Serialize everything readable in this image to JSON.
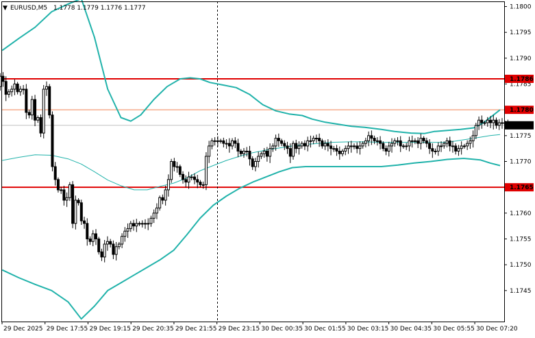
{
  "header": {
    "symbol": "EURUSD,M5",
    "ohlc": "1.1778 1.1779 1.1776 1.1777",
    "triangle": "▼"
  },
  "colors": {
    "background": "#ffffff",
    "candle": "#000000",
    "band": "#20b2aa",
    "level_line": "#e00000",
    "level_line_thin": "#f08050",
    "current_line": "#c0c0c0",
    "current_label_bg": "#000000",
    "level_label_bg": "#e00000"
  },
  "chart_data": {
    "type": "candlestick",
    "instrument": "EURUSD",
    "timeframe": "M5",
    "ylim": [
      1.1739,
      1.1801
    ],
    "y_ticks": [
      "1.1800",
      "1.1795",
      "1.1790",
      "1.1785",
      "1.1775",
      "1.1770",
      "1.1760",
      "1.1755",
      "1.1750",
      "1.1745"
    ],
    "x_ticks": [
      "29 Dec 2025",
      "29 Dec 17:55",
      "29 Dec 19:15",
      "29 Dec 20:35",
      "29 Dec 21:55",
      "29 Dec 23:15",
      "30 Dec 00:35",
      "30 Dec 01:55",
      "30 Dec 03:15",
      "30 Dec 04:35",
      "30 Dec 05:55",
      "30 Dec 07:20"
    ],
    "levels": [
      {
        "value": "1.1786",
        "style": "thick"
      },
      {
        "value": "1.1780",
        "style": "thin"
      },
      {
        "value": "1.1765",
        "style": "thick"
      }
    ],
    "current_price": "1.1777",
    "session_separator_after_tick": 5,
    "close": [
      1.17845,
      1.17865,
      1.17855,
      1.1783,
      1.17835,
      1.1784,
      1.1785,
      1.17835,
      1.1784,
      1.1784,
      1.17795,
      1.1779,
      1.1782,
      1.1778,
      1.17785,
      1.17755,
      1.1784,
      1.17845,
      1.1779,
      1.1769,
      1.17665,
      1.17645,
      1.17645,
      1.17625,
      1.1763,
      1.17655,
      1.1758,
      1.17625,
      1.1762,
      1.17585,
      1.1758,
      1.1755,
      1.17545,
      1.1756,
      1.1755,
      1.17525,
      1.17515,
      1.1754,
      1.17545,
      1.1754,
      1.1752,
      1.17535,
      1.1754,
      1.17555,
      1.17565,
      1.1757,
      1.1758,
      1.17575,
      1.1758,
      1.1758,
      1.1758,
      1.1758,
      1.1758,
      1.1759,
      1.176,
      1.1761,
      1.1763,
      1.17625,
      1.17645,
      1.17665,
      1.177,
      1.1769,
      1.1769,
      1.17675,
      1.17665,
      1.1766,
      1.1767,
      1.1767,
      1.17665,
      1.1766,
      1.17655,
      1.17655,
      1.1771,
      1.1773,
      1.1774,
      1.1774,
      1.1774,
      1.1774,
      1.17735,
      1.17735,
      1.1773,
      1.1774,
      1.17735,
      1.1772,
      1.17715,
      1.1772,
      1.1772,
      1.17705,
      1.1769,
      1.177,
      1.1771,
      1.17715,
      1.1772,
      1.1771,
      1.17725,
      1.1773,
      1.17745,
      1.1774,
      1.17735,
      1.1773,
      1.17725,
      1.1771,
      1.17735,
      1.17725,
      1.1773,
      1.17735,
      1.1773,
      1.1774,
      1.1774,
      1.17745,
      1.17745,
      1.1774,
      1.1773,
      1.17735,
      1.1773,
      1.17725,
      1.17725,
      1.1772,
      1.17715,
      1.1772,
      1.17725,
      1.1773,
      1.1773,
      1.1773,
      1.17725,
      1.1773,
      1.17735,
      1.1774,
      1.1775,
      1.17745,
      1.1774,
      1.1774,
      1.17735,
      1.17725,
      1.1772,
      1.1773,
      1.17735,
      1.1774,
      1.1774,
      1.1773,
      1.1773,
      1.1773,
      1.1774,
      1.1774,
      1.1774,
      1.17735,
      1.17745,
      1.1774,
      1.17735,
      1.17725,
      1.1772,
      1.1772,
      1.1773,
      1.1773,
      1.17735,
      1.1774,
      1.1773,
      1.1773,
      1.1772,
      1.17725,
      1.1773,
      1.1773,
      1.17735,
      1.1774,
      1.1775,
      1.1777,
      1.1778,
      1.17775,
      1.17775,
      1.1778,
      1.17775,
      1.1778,
      1.1777,
      1.17775,
      1.17775,
      1.17775,
      1.1777
    ],
    "bollinger_upper": [
      [
        0,
        1.17915
      ],
      [
        10,
        1.17938
      ],
      [
        20,
        1.1796
      ],
      [
        30,
        1.1799
      ],
      [
        40,
        1.18005
      ],
      [
        48,
        1.18015
      ],
      [
        56,
        1.1794
      ],
      [
        64,
        1.1784
      ],
      [
        72,
        1.17785
      ],
      [
        78,
        1.17778
      ],
      [
        84,
        1.1779
      ],
      [
        92,
        1.1782
      ],
      [
        100,
        1.17845
      ],
      [
        108,
        1.1786
      ],
      [
        114,
        1.17862
      ],
      [
        120,
        1.1786
      ],
      [
        126,
        1.17853
      ],
      [
        134,
        1.17848
      ],
      [
        142,
        1.17843
      ],
      [
        150,
        1.1783
      ],
      [
        158,
        1.1781
      ],
      [
        166,
        1.17798
      ],
      [
        174,
        1.17792
      ],
      [
        182,
        1.17789
      ],
      [
        188,
        1.17782
      ],
      [
        196,
        1.17776
      ],
      [
        204,
        1.17772
      ],
      [
        212,
        1.17768
      ],
      [
        220,
        1.17766
      ],
      [
        230,
        1.17762
      ],
      [
        238,
        1.17758
      ],
      [
        248,
        1.17755
      ],
      [
        256,
        1.17754
      ],
      [
        262,
        1.17758
      ],
      [
        270,
        1.1776
      ],
      [
        278,
        1.17762
      ],
      [
        286,
        1.17765
      ],
      [
        292,
        1.17775
      ],
      [
        298,
        1.1779
      ],
      [
        302,
        1.178
      ]
    ],
    "bollinger_middle": [
      [
        0,
        1.17702
      ],
      [
        10,
        1.17708
      ],
      [
        20,
        1.17713
      ],
      [
        30,
        1.17712
      ],
      [
        40,
        1.17705
      ],
      [
        48,
        1.17695
      ],
      [
        56,
        1.1768
      ],
      [
        64,
        1.17664
      ],
      [
        72,
        1.17653
      ],
      [
        80,
        1.17645
      ],
      [
        88,
        1.17645
      ],
      [
        96,
        1.17652
      ],
      [
        104,
        1.17658
      ],
      [
        112,
        1.17668
      ],
      [
        120,
        1.17682
      ],
      [
        128,
        1.17692
      ],
      [
        136,
        1.17702
      ],
      [
        144,
        1.1771
      ],
      [
        152,
        1.17717
      ],
      [
        160,
        1.17722
      ],
      [
        168,
        1.17726
      ],
      [
        176,
        1.1773
      ],
      [
        184,
        1.17733
      ],
      [
        192,
        1.17735
      ],
      [
        200,
        1.17737
      ],
      [
        210,
        1.17738
      ],
      [
        220,
        1.17738
      ],
      [
        230,
        1.17737
      ],
      [
        240,
        1.17737
      ],
      [
        250,
        1.17737
      ],
      [
        260,
        1.17737
      ],
      [
        270,
        1.17737
      ],
      [
        280,
        1.17742
      ],
      [
        290,
        1.17747
      ],
      [
        296,
        1.1775
      ],
      [
        302,
        1.17752
      ]
    ],
    "bollinger_lower": [
      [
        0,
        1.1749
      ],
      [
        10,
        1.17475
      ],
      [
        20,
        1.17462
      ],
      [
        30,
        1.1745
      ],
      [
        40,
        1.17428
      ],
      [
        48,
        1.17395
      ],
      [
        56,
        1.1742
      ],
      [
        64,
        1.1745
      ],
      [
        72,
        1.17465
      ],
      [
        80,
        1.1748
      ],
      [
        88,
        1.17495
      ],
      [
        96,
        1.1751
      ],
      [
        104,
        1.17528
      ],
      [
        112,
        1.17558
      ],
      [
        120,
        1.1759
      ],
      [
        128,
        1.17615
      ],
      [
        136,
        1.17633
      ],
      [
        144,
        1.17648
      ],
      [
        152,
        1.1766
      ],
      [
        160,
        1.1767
      ],
      [
        168,
        1.1768
      ],
      [
        176,
        1.17688
      ],
      [
        184,
        1.1769
      ],
      [
        192,
        1.1769
      ],
      [
        200,
        1.1769
      ],
      [
        210,
        1.1769
      ],
      [
        220,
        1.1769
      ],
      [
        230,
        1.1769
      ],
      [
        240,
        1.17693
      ],
      [
        250,
        1.17697
      ],
      [
        260,
        1.177
      ],
      [
        270,
        1.17704
      ],
      [
        280,
        1.17706
      ],
      [
        290,
        1.17703
      ],
      [
        296,
        1.17697
      ],
      [
        302,
        1.17692
      ]
    ]
  }
}
